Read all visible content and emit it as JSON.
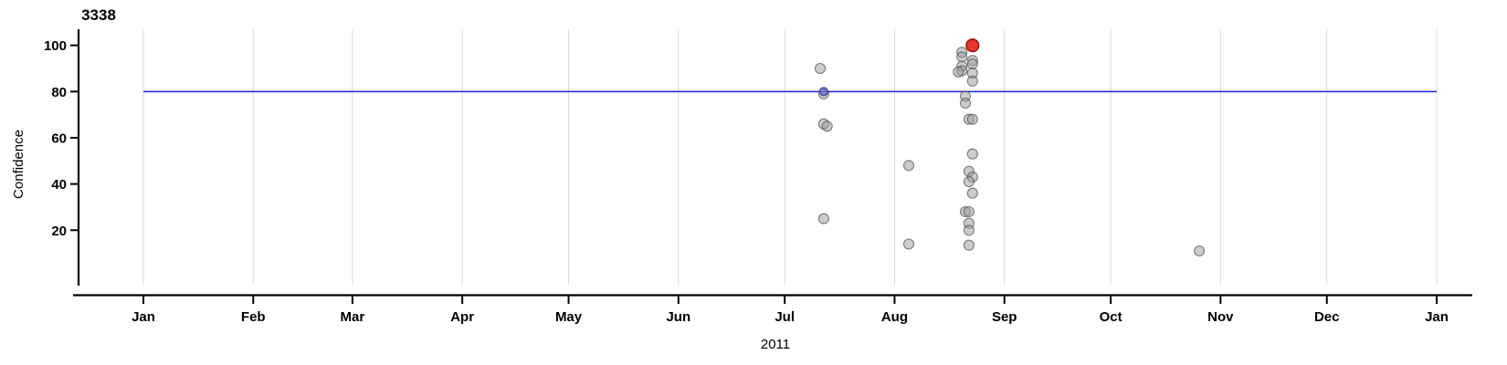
{
  "chart_data": {
    "type": "scatter",
    "title": "3338",
    "xlabel": "2011",
    "ylabel": "Confidence",
    "x_axis": {
      "kind": "date",
      "year": 2011,
      "tick_dates": [
        "2011-01-01",
        "2011-02-01",
        "2011-03-01",
        "2011-04-01",
        "2011-05-01",
        "2011-06-01",
        "2011-07-01",
        "2011-08-01",
        "2011-09-01",
        "2011-10-01",
        "2011-11-01",
        "2011-12-01",
        "2012-01-01"
      ],
      "tick_labels": [
        "Jan",
        "Feb",
        "Mar",
        "Apr",
        "May",
        "Jun",
        "Jul",
        "Aug",
        "Sep",
        "Oct",
        "Nov",
        "Dec",
        "Jan"
      ],
      "grid": "vertical-lines-at-month-starts"
    },
    "y_axis": {
      "label": "Confidence",
      "ticks": [
        20,
        40,
        60,
        80,
        100
      ],
      "range": [
        0,
        100
      ]
    },
    "threshold_line": {
      "value": 80,
      "color": "#2222c8"
    },
    "point_styles": {
      "default": {
        "fill": "rgba(153,153,153,0.50)",
        "stroke": "rgba(77,77,77,0.70)",
        "radius": 5.5,
        "stroke_width": 1.1
      },
      "highlight-blue": {
        "fill": "rgba(110,110,200,0.85)",
        "stroke": "rgba(55,55,140,0.90)",
        "radius": 4.5,
        "stroke_width": 1.2
      },
      "highlight-red": {
        "fill": "#e4372d",
        "stroke": "#a81410",
        "radius": 6.8,
        "stroke_width": 1.6
      }
    },
    "points": [
      {
        "date": "2011-07-11",
        "confidence": 90,
        "style": "default"
      },
      {
        "date": "2011-07-12",
        "confidence": 80,
        "style": "highlight-blue"
      },
      {
        "date": "2011-07-12",
        "confidence": 79,
        "style": "default"
      },
      {
        "date": "2011-07-12",
        "confidence": 66,
        "style": "default"
      },
      {
        "date": "2011-07-13",
        "confidence": 65,
        "style": "default"
      },
      {
        "date": "2011-07-12",
        "confidence": 25,
        "style": "default"
      },
      {
        "date": "2011-08-05",
        "confidence": 48,
        "style": "default"
      },
      {
        "date": "2011-08-05",
        "confidence": 14,
        "style": "default"
      },
      {
        "date": "2011-08-23",
        "confidence": 100,
        "style": "highlight-red"
      },
      {
        "date": "2011-08-20",
        "confidence": 97,
        "style": "default"
      },
      {
        "date": "2011-08-20",
        "confidence": 95,
        "style": "default"
      },
      {
        "date": "2011-08-23",
        "confidence": 93.5,
        "style": "default"
      },
      {
        "date": "2011-08-23",
        "confidence": 92,
        "style": "default"
      },
      {
        "date": "2011-08-20",
        "confidence": 91,
        "style": "default"
      },
      {
        "date": "2011-08-20",
        "confidence": 89,
        "style": "default"
      },
      {
        "date": "2011-08-19",
        "confidence": 88.5,
        "style": "default"
      },
      {
        "date": "2011-08-23",
        "confidence": 88,
        "style": "default"
      },
      {
        "date": "2011-08-23",
        "confidence": 84.5,
        "style": "default"
      },
      {
        "date": "2011-08-21",
        "confidence": 78,
        "style": "default"
      },
      {
        "date": "2011-08-21",
        "confidence": 75,
        "style": "default"
      },
      {
        "date": "2011-08-22",
        "confidence": 68,
        "style": "default"
      },
      {
        "date": "2011-08-23",
        "confidence": 68,
        "style": "default"
      },
      {
        "date": "2011-08-23",
        "confidence": 53,
        "style": "default"
      },
      {
        "date": "2011-08-22",
        "confidence": 45.5,
        "style": "default"
      },
      {
        "date": "2011-08-23",
        "confidence": 43,
        "style": "default"
      },
      {
        "date": "2011-08-22",
        "confidence": 41,
        "style": "default"
      },
      {
        "date": "2011-08-23",
        "confidence": 36,
        "style": "default"
      },
      {
        "date": "2011-08-21",
        "confidence": 28,
        "style": "default"
      },
      {
        "date": "2011-08-22",
        "confidence": 28,
        "style": "default"
      },
      {
        "date": "2011-08-22",
        "confidence": 23,
        "style": "default"
      },
      {
        "date": "2011-08-22",
        "confidence": 20,
        "style": "default"
      },
      {
        "date": "2011-08-22",
        "confidence": 13.5,
        "style": "default"
      },
      {
        "date": "2011-10-26",
        "confidence": 11,
        "style": "default"
      }
    ]
  }
}
